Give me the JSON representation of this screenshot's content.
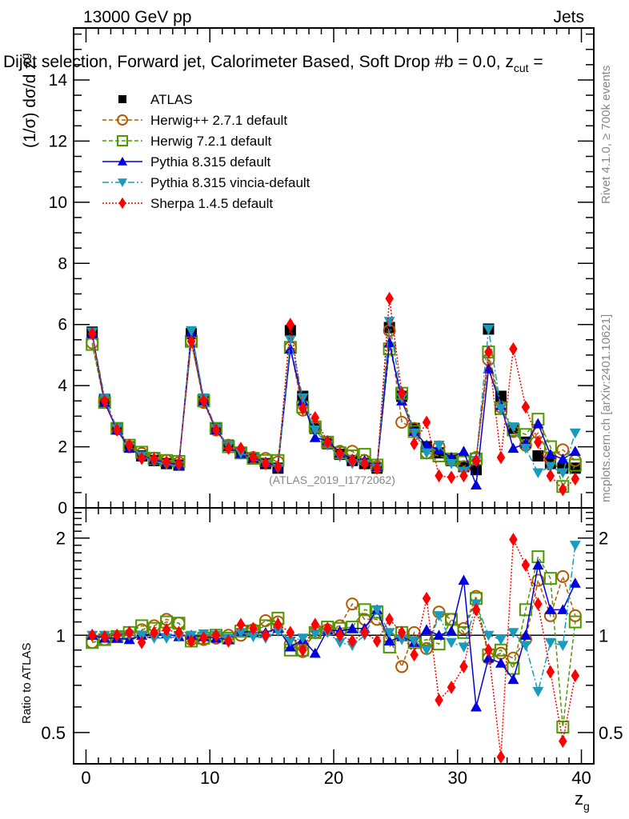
{
  "header": {
    "left": "13000 GeV pp",
    "right": "Jets"
  },
  "plot_title": "Dijet selection, Forward jet, Calorimeter Based, Soft Drop #b = 0.0, z",
  "plot_title_sub": "cut",
  "plot_title_tail": " =",
  "side_text_top": "Rivet 4.1.0, ≥ 700k events",
  "side_text_bottom": "mcplots.cern.ch [arXiv:2401.10621]",
  "analysis_label": "(ATLAS_2019_I1772062)",
  "chart_data": [
    {
      "type": "scatter",
      "panel": "main",
      "ylabel": "(1/σ) dσ/d z_g",
      "ylabel_main": "(1/σ) dσ/d z",
      "ylabel_sub": "g",
      "xlabel": "z_g",
      "xlim": [
        -1,
        41
      ],
      "ylim": [
        0,
        15.7
      ],
      "yticks": [
        0,
        2,
        4,
        6,
        8,
        10,
        12,
        14
      ],
      "xticks": [
        0,
        10,
        20,
        30,
        40
      ],
      "x": [
        0.5,
        1.5,
        2.5,
        3.5,
        4.5,
        5.5,
        6.5,
        7.5,
        8.5,
        9.5,
        10.5,
        11.5,
        12.5,
        13.5,
        14.5,
        15.5,
        16.5,
        17.5,
        18.5,
        19.5,
        20.5,
        21.5,
        22.5,
        23.5,
        24.5,
        25.5,
        26.5,
        27.5,
        28.5,
        29.5,
        30.5,
        31.5,
        32.5,
        33.5,
        34.5,
        35.5,
        36.5,
        37.5,
        38.5,
        39.5
      ],
      "legend": "top-left",
      "series": [
        {
          "name": "ATLAS",
          "color": "#000000",
          "marker": "square-filled",
          "line": "none",
          "values": [
            5.75,
            3.55,
            2.6,
            2.0,
            1.7,
            1.55,
            1.45,
            1.4,
            5.7,
            3.55,
            2.6,
            2.05,
            1.8,
            1.6,
            1.45,
            1.3,
            5.8,
            3.65,
            2.6,
            2.1,
            1.75,
            1.55,
            1.45,
            1.3,
            5.9,
            3.65,
            2.6,
            2.0,
            1.8,
            1.55,
            1.35,
            1.25,
            5.85,
            3.65,
            2.6,
            2.15,
            1.7,
            1.45,
            1.3,
            1.3
          ]
        },
        {
          "name": "Herwig++ 2.7.1 default",
          "color": "#b35900",
          "marker": "circle-open",
          "line": "dashed",
          "values": [
            5.4,
            3.45,
            2.58,
            2.0,
            1.78,
            1.63,
            1.55,
            1.48,
            5.45,
            3.45,
            2.55,
            2.05,
            1.8,
            1.65,
            1.62,
            1.5,
            5.25,
            3.2,
            2.65,
            2.15,
            1.85,
            1.85,
            1.55,
            1.35,
            5.8,
            2.8,
            2.6,
            1.8,
            2.0,
            1.6,
            1.35,
            1.65,
            4.85,
            3.3,
            2.5,
            2.05,
            2.45,
            1.65,
            1.9,
            1.55
          ]
        },
        {
          "name": "Herwig 7.2.1 default",
          "color": "#4c9900",
          "marker": "square-open",
          "line": "dashed",
          "values": [
            5.35,
            3.45,
            2.6,
            2.05,
            1.82,
            1.62,
            1.55,
            1.52,
            5.45,
            3.5,
            2.6,
            2.0,
            1.8,
            1.62,
            1.55,
            1.55,
            5.25,
            3.3,
            2.65,
            2.15,
            1.8,
            1.7,
            1.75,
            1.4,
            5.2,
            3.75,
            2.5,
            1.8,
            1.7,
            1.6,
            1.5,
            1.6,
            5.1,
            3.25,
            2.55,
            2.4,
            2.9,
            2.0,
            0.7,
            1.4
          ]
        },
        {
          "name": "Pythia 8.315 default",
          "color": "#0000dd",
          "marker": "triangle-up-filled",
          "line": "solid",
          "values": [
            5.7,
            3.45,
            2.55,
            1.95,
            1.7,
            1.58,
            1.48,
            1.4,
            5.75,
            3.5,
            2.55,
            2.0,
            1.78,
            1.63,
            1.5,
            1.35,
            5.2,
            3.5,
            2.3,
            2.2,
            1.8,
            1.6,
            1.55,
            1.35,
            5.4,
            3.5,
            2.5,
            2.05,
            1.9,
            1.65,
            1.85,
            0.75,
            4.55,
            3.35,
            1.95,
            2.1,
            2.75,
            1.75,
            1.6,
            1.85
          ]
        },
        {
          "name": "Pythia 8.315 vincia-default",
          "color": "#1a9bbd",
          "marker": "triangle-down-filled",
          "line": "dashdot",
          "values": [
            5.75,
            3.6,
            2.6,
            2.0,
            1.7,
            1.52,
            1.42,
            1.38,
            5.8,
            3.6,
            2.6,
            2.02,
            1.8,
            1.6,
            1.42,
            1.3,
            5.5,
            3.6,
            2.55,
            2.05,
            1.68,
            1.45,
            1.42,
            1.3,
            6.1,
            3.6,
            2.45,
            1.8,
            2.05,
            1.45,
            1.2,
            1.55,
            5.85,
            3.25,
            2.65,
            1.95,
            1.15,
            1.35,
            1.15,
            2.45
          ]
        },
        {
          "name": "Sherpa 1.4.5 default",
          "color": "#ff0000",
          "marker": "diamond-filled",
          "line": "dotted",
          "values": [
            5.7,
            3.5,
            2.55,
            2.05,
            1.62,
            1.6,
            1.5,
            1.45,
            5.45,
            3.5,
            2.55,
            1.95,
            1.95,
            1.65,
            1.45,
            1.35,
            6.0,
            3.25,
            2.95,
            2.15,
            1.78,
            1.55,
            1.45,
            1.3,
            6.85,
            3.75,
            2.1,
            2.8,
            1.05,
            1.0,
            1.05,
            1.55,
            5.1,
            1.65,
            5.2,
            3.3,
            2.15,
            1.05,
            0.6,
            0.95
          ]
        }
      ]
    },
    {
      "type": "scatter",
      "panel": "ratio",
      "ylabel": "Ratio to ATLAS",
      "xlabel": "z_g",
      "xlim": [
        -1,
        41
      ],
      "ylim": [
        0.4,
        2.48
      ],
      "yscale": "log",
      "yticks": [
        0.5,
        1,
        2
      ],
      "xticks": [
        0,
        10,
        20,
        30,
        40
      ],
      "reference_line": 1,
      "x": [
        0.5,
        1.5,
        2.5,
        3.5,
        4.5,
        5.5,
        6.5,
        7.5,
        8.5,
        9.5,
        10.5,
        11.5,
        12.5,
        13.5,
        14.5,
        15.5,
        16.5,
        17.5,
        18.5,
        19.5,
        20.5,
        21.5,
        22.5,
        23.5,
        24.5,
        25.5,
        26.5,
        27.5,
        28.5,
        29.5,
        30.5,
        31.5,
        32.5,
        33.5,
        34.5,
        35.5,
        36.5,
        37.5,
        38.5,
        39.5
      ],
      "series": [
        {
          "name": "Herwig++ 2.7.1 default",
          "color": "#b35900",
          "marker": "circle-open",
          "line": "dashed",
          "values": [
            0.95,
            0.97,
            0.99,
            1.0,
            1.04,
            1.07,
            1.12,
            1.09,
            0.97,
            0.97,
            0.98,
            1.0,
            1.0,
            1.04,
            1.11,
            1.1,
            0.94,
            0.89,
            1.02,
            1.04,
            1.07,
            1.25,
            1.12,
            1.12,
            0.98,
            0.8,
            1.02,
            0.91,
            1.18,
            1.12,
            1.05,
            1.32,
            0.85,
            0.88,
            0.85,
            0.97,
            1.48,
            1.15,
            1.52,
            1.15
          ]
        },
        {
          "name": "Herwig 7.2.1 default",
          "color": "#4c9900",
          "marker": "square-open",
          "line": "dashed",
          "values": [
            0.95,
            0.97,
            0.99,
            1.02,
            1.07,
            1.05,
            1.1,
            1.09,
            0.96,
            0.98,
            1.0,
            0.98,
            1.03,
            1.03,
            1.07,
            1.13,
            0.9,
            0.9,
            1.02,
            1.06,
            1.05,
            1.06,
            1.2,
            1.18,
            0.92,
            1.02,
            0.95,
            0.97,
            0.94,
            1.12,
            1.02,
            1.3,
            0.87,
            0.9,
            0.79,
            1.2,
            1.75,
            1.5,
            0.52,
            1.1
          ]
        },
        {
          "name": "Pythia 8.315 default",
          "color": "#0000dd",
          "marker": "triangle-up-filled",
          "line": "solid",
          "values": [
            1.0,
            0.98,
            0.98,
            0.97,
            1.0,
            1.01,
            1.01,
            0.99,
            1.0,
            0.99,
            0.98,
            0.97,
            1.03,
            1.02,
            1.02,
            1.05,
            0.92,
            0.97,
            0.88,
            1.04,
            1.03,
            1.05,
            1.05,
            1.2,
            0.96,
            0.99,
            0.95,
            1.04,
            1.0,
            1.03,
            1.48,
            0.6,
            0.85,
            0.82,
            0.73,
            1.0,
            1.65,
            1.2,
            1.2,
            1.45
          ]
        },
        {
          "name": "Pythia 8.315 vincia-default",
          "color": "#1a9bbd",
          "marker": "triangle-down-filled",
          "line": "dashdot",
          "values": [
            1.0,
            1.0,
            0.99,
            1.0,
            1.0,
            0.98,
            0.98,
            0.99,
            1.0,
            1.01,
            1.0,
            0.98,
            1.02,
            0.99,
            0.98,
            1.03,
            0.96,
            0.98,
            1.01,
            1.02,
            0.95,
            0.93,
            1.0,
            1.2,
            1.02,
            0.97,
            0.96,
            0.9,
            1.15,
            0.95,
            0.92,
            1.25,
            1.0,
            0.97,
            1.02,
            0.93,
            0.67,
            0.95,
            0.93,
            1.9
          ]
        },
        {
          "name": "Sherpa 1.4.5 default",
          "color": "#ff0000",
          "marker": "diamond-filled",
          "line": "dotted",
          "values": [
            1.0,
            0.99,
            1.0,
            1.02,
            0.95,
            1.02,
            1.04,
            1.02,
            0.96,
            0.98,
            1.0,
            0.96,
            1.08,
            1.05,
            1.0,
            1.08,
            1.02,
            0.9,
            1.08,
            1.05,
            1.0,
            0.96,
            1.02,
            0.96,
            1.12,
            1.02,
            0.87,
            1.3,
            0.63,
            0.69,
            0.8,
            1.2,
            0.9,
            0.42,
            1.98,
            1.65,
            1.25,
            0.77,
            0.47,
            0.75
          ]
        }
      ]
    }
  ]
}
